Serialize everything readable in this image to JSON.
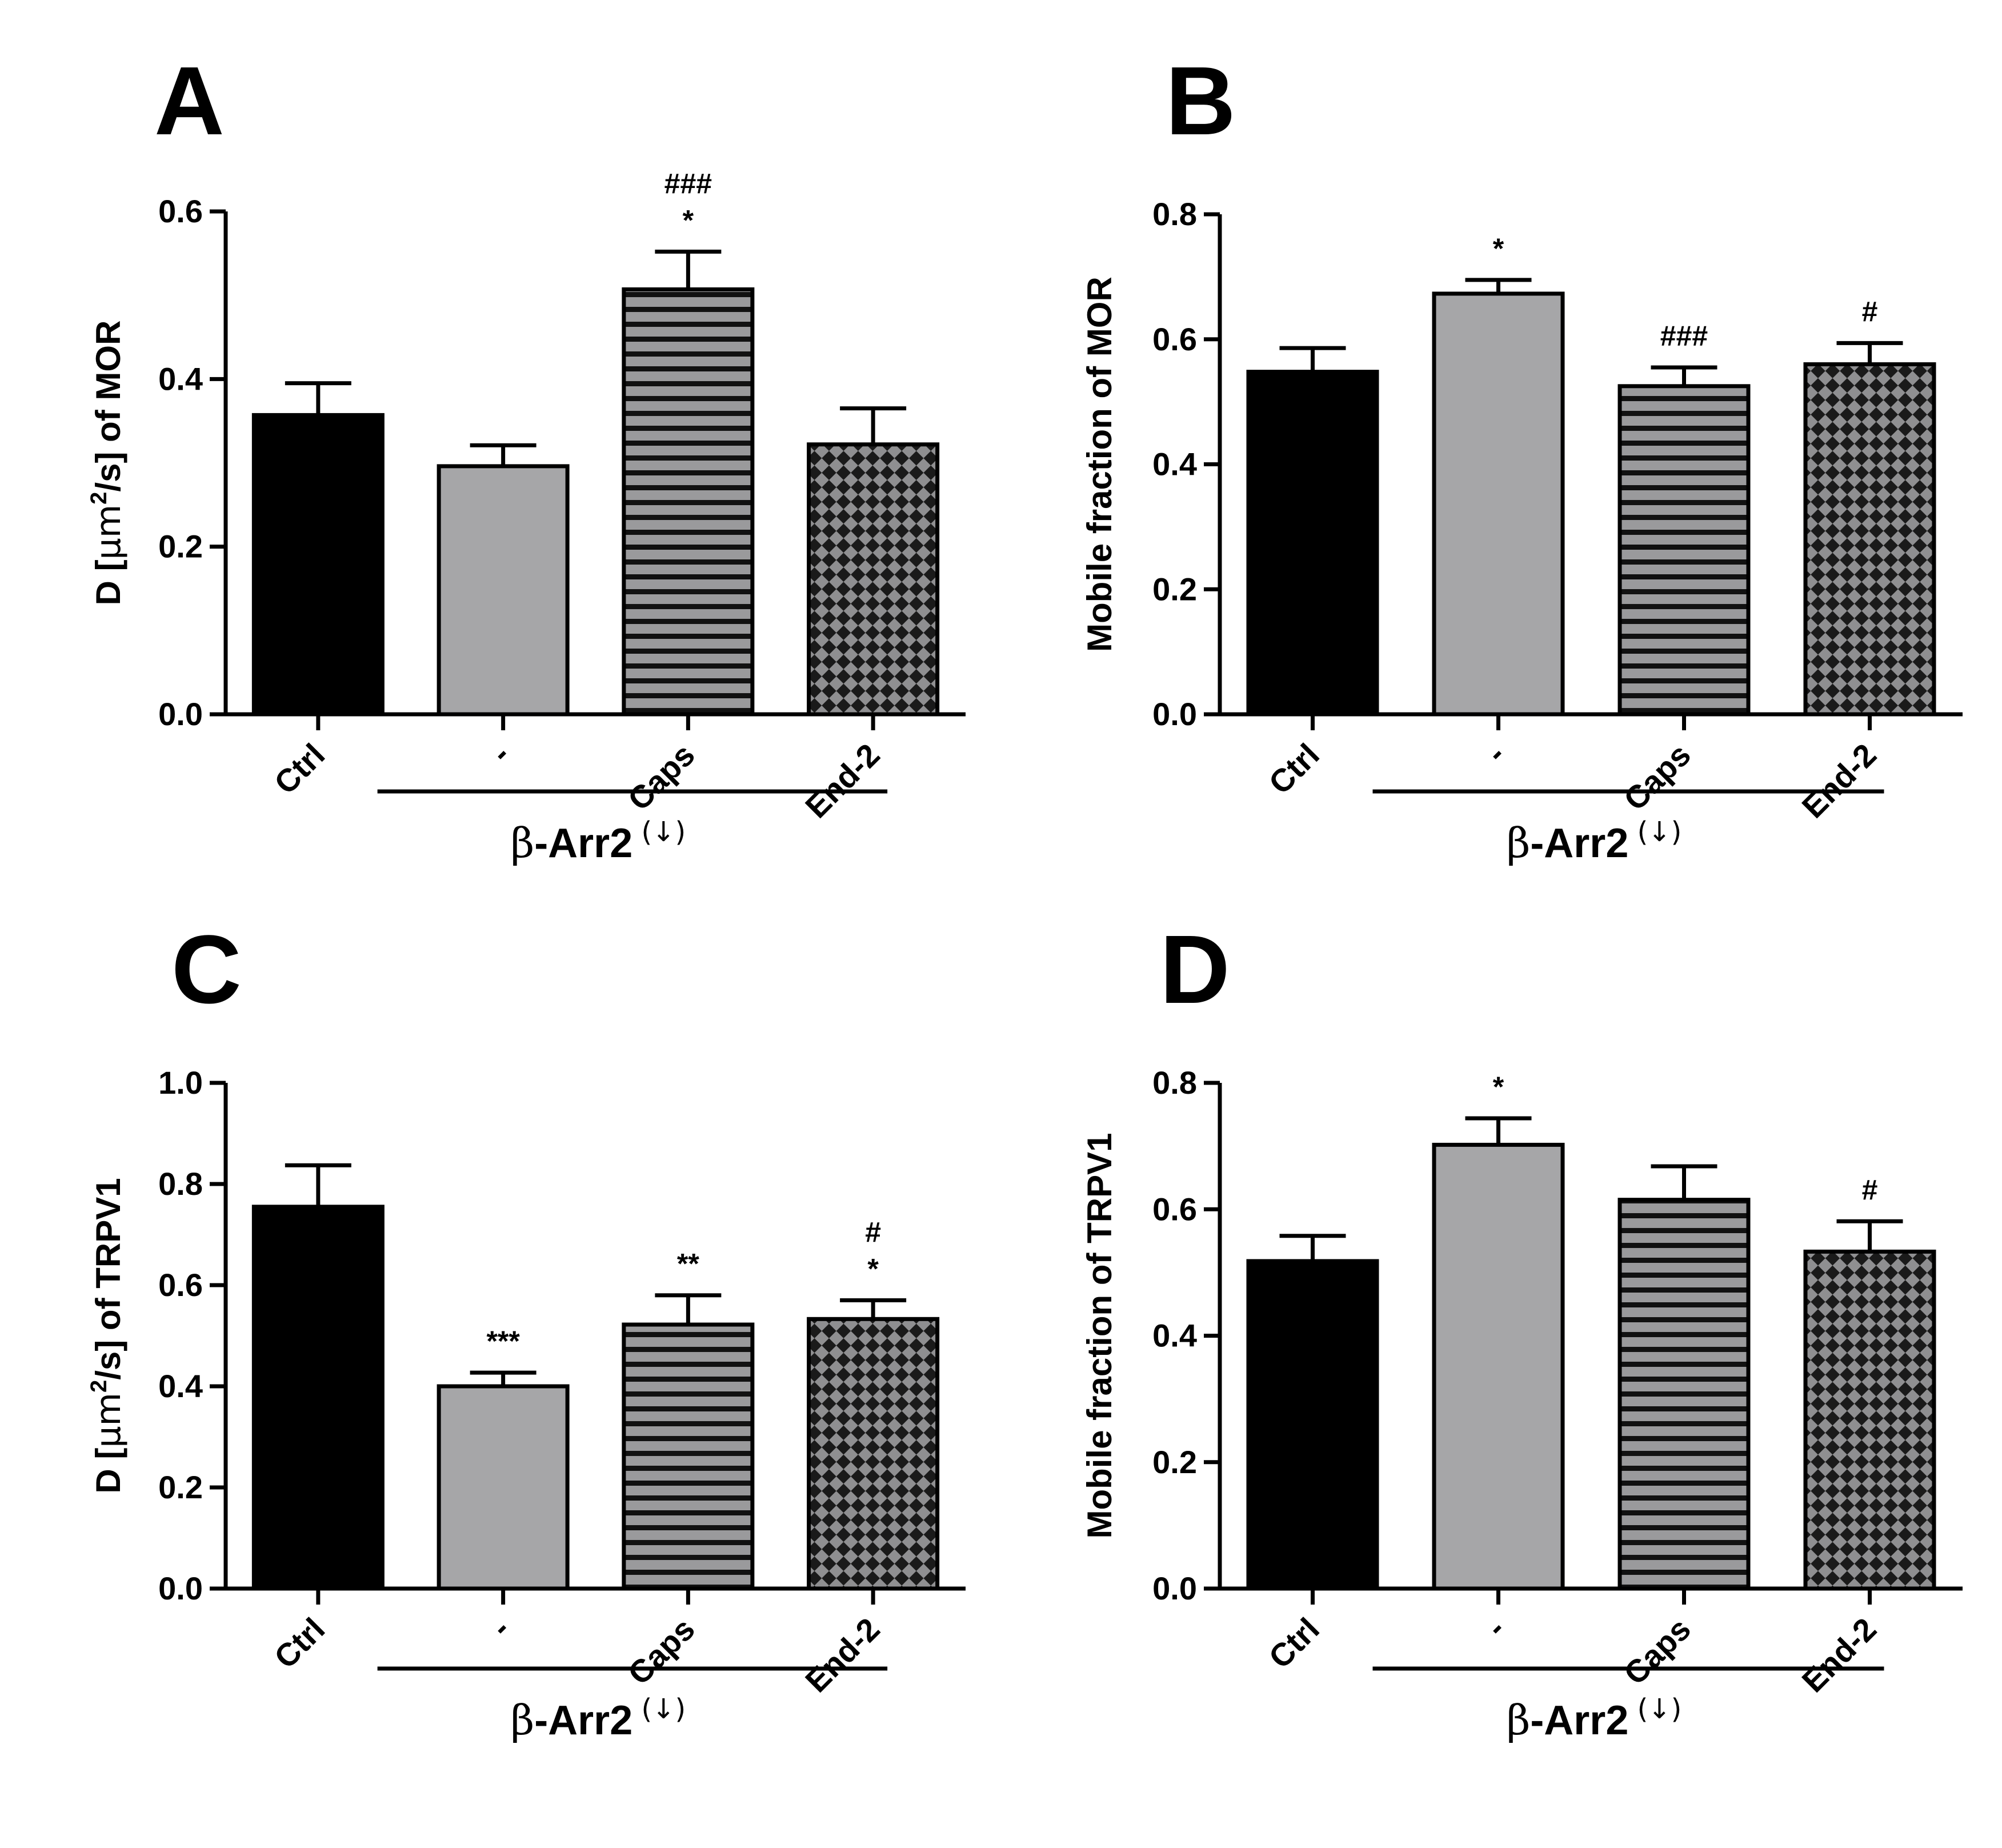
{
  "figure": {
    "group_label": {
      "greek": "β",
      "text": "-Arr2",
      "superscript": "(↓)"
    }
  },
  "colors": {
    "ctrl": "#000000",
    "beta_arr2_minus": "#a6a6a8",
    "caps_fill": "#9a9a9c",
    "caps_stripe": "#111111",
    "end2_fill": "#8f8f91",
    "end2_check": "#1a1a1a",
    "axis": "#000000"
  },
  "chart_data": [
    {
      "panel": "A",
      "type": "bar",
      "ylabel_parts": [
        "D [",
        "μm",
        "2",
        "/s] of MOR"
      ],
      "categories": [
        "Ctrl",
        "-",
        "Caps",
        "End-2"
      ],
      "patterns": [
        "solid-black",
        "solid-gray",
        "horizontal-stripes",
        "checker"
      ],
      "values": [
        0.357,
        0.296,
        0.507,
        0.322
      ],
      "errors": [
        0.038,
        0.025,
        0.045,
        0.043
      ],
      "annotations": [
        [],
        [],
        [
          "###",
          "*"
        ],
        []
      ],
      "yticks": [
        "0.0",
        "0.2",
        "0.4",
        "0.6"
      ],
      "ylim": [
        0,
        0.6
      ]
    },
    {
      "panel": "B",
      "type": "bar",
      "ylabel_parts": [
        "Mobile fraction of MOR"
      ],
      "categories": [
        "Ctrl",
        "-",
        "Caps",
        "End-2"
      ],
      "patterns": [
        "solid-black",
        "solid-gray",
        "horizontal-stripes",
        "checker"
      ],
      "values": [
        0.548,
        0.673,
        0.525,
        0.56
      ],
      "errors": [
        0.038,
        0.022,
        0.03,
        0.034
      ],
      "annotations": [
        [],
        [
          "*"
        ],
        [
          "###"
        ],
        [
          "#"
        ]
      ],
      "yticks": [
        "0.0",
        "0.2",
        "0.4",
        "0.6",
        "0.8"
      ],
      "ylim": [
        0,
        0.8
      ]
    },
    {
      "panel": "C",
      "type": "bar",
      "ylabel_parts": [
        "D [",
        "μm",
        "2",
        "/s] of TRPV1"
      ],
      "categories": [
        "Ctrl",
        "-",
        "Caps",
        "End-2"
      ],
      "patterns": [
        "solid-black",
        "solid-gray",
        "horizontal-stripes",
        "checker"
      ],
      "values": [
        0.755,
        0.4,
        0.522,
        0.533
      ],
      "errors": [
        0.082,
        0.027,
        0.058,
        0.037
      ],
      "annotations": [
        [],
        [
          "***"
        ],
        [
          "**"
        ],
        [
          "#",
          "*"
        ]
      ],
      "yticks": [
        "0.0",
        "0.2",
        "0.4",
        "0.6",
        "0.8",
        "1.0"
      ],
      "ylim": [
        0,
        1.0
      ]
    },
    {
      "panel": "D",
      "type": "bar",
      "ylabel_parts": [
        "Mobile fraction of TRPV1"
      ],
      "categories": [
        "Ctrl",
        "-",
        "Caps",
        "End-2"
      ],
      "patterns": [
        "solid-black",
        "solid-gray",
        "horizontal-stripes",
        "checker"
      ],
      "values": [
        0.518,
        0.702,
        0.615,
        0.533
      ],
      "errors": [
        0.04,
        0.042,
        0.053,
        0.048
      ],
      "annotations": [
        [],
        [
          "*"
        ],
        [],
        [
          "#"
        ]
      ],
      "yticks": [
        "0.0",
        "0.2",
        "0.4",
        "0.6",
        "0.8"
      ],
      "ylim": [
        0,
        0.8
      ]
    }
  ]
}
